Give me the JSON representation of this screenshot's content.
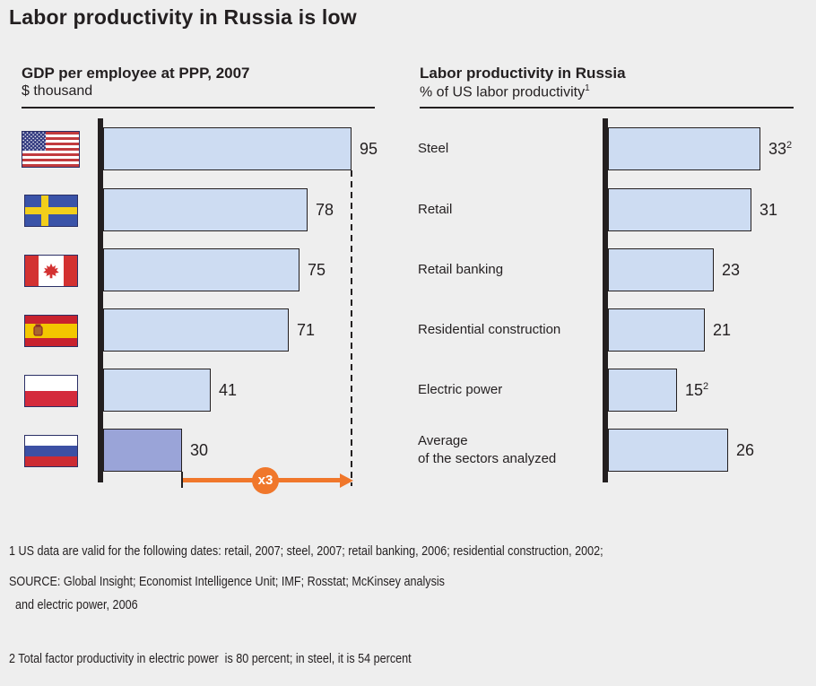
{
  "title": "Labor productivity in Russia is low",
  "left_chart": {
    "title": "GDP per employee at PPP, 2007",
    "subtitle": "$ thousand",
    "rows": [
      {
        "country": "United States",
        "value_label": "95"
      },
      {
        "country": "Sweden",
        "value_label": "78"
      },
      {
        "country": "Canada",
        "value_label": "75"
      },
      {
        "country": "Spain",
        "value_label": "71"
      },
      {
        "country": "Poland",
        "value_label": "41"
      },
      {
        "country": "Russia",
        "value_label": "30"
      }
    ],
    "multiplier_label": "x3"
  },
  "right_chart": {
    "title": "Labor productivity in Russia",
    "subtitle": "% of US labor productivity",
    "subtitle_superscript": "1",
    "rows": [
      {
        "label": "Steel",
        "value_label": "33",
        "superscript": "2"
      },
      {
        "label": "Retail",
        "value_label": "31",
        "superscript": ""
      },
      {
        "label": "Retail banking",
        "value_label": "23",
        "superscript": ""
      },
      {
        "label": "Residential construction",
        "value_label": "21",
        "superscript": ""
      },
      {
        "label": "Electric power",
        "value_label": "15",
        "superscript": "2"
      },
      {
        "label": "Average\n of the sectors analyzed",
        "value_label": "26",
        "superscript": ""
      }
    ]
  },
  "footnotes": [
    "1 US data are valid for the following dates: retail, 2007; steel, 2007; retail banking, 2006; residential construction, 2002;",
    "  and electric power, 2006",
    "2 Total factor productivity in electric power  is 80 percent; in steel, it is 54 percent"
  ],
  "source": "SOURCE: Global Insight; Economist Intelligence Unit; IMF; Rosstat; McKinsey analysis",
  "colors": {
    "background": "#EEEEEE",
    "bar_fill": "#CDDCF2",
    "bar_highlight": "#9AA4D8",
    "bar_border": "#231F20",
    "axis": "#231F20",
    "accent_orange": "#F0772B",
    "text": "#231F20"
  },
  "chart_data": [
    {
      "type": "bar",
      "orientation": "horizontal",
      "title": "GDP per employee at PPP, 2007",
      "unit": "$ thousand",
      "categories": [
        "United States",
        "Sweden",
        "Canada",
        "Spain",
        "Poland",
        "Russia"
      ],
      "values": [
        95,
        78,
        75,
        71,
        41,
        30
      ],
      "xlim": [
        0,
        95
      ],
      "highlight_category": "Russia",
      "annotations": [
        {
          "type": "arrow",
          "text": "x3",
          "note": "gap between Russia (30) and US (95)"
        }
      ],
      "legend": false,
      "grid": false
    },
    {
      "type": "bar",
      "orientation": "horizontal",
      "title": "Labor productivity in Russia",
      "unit": "% of US labor productivity",
      "categories": [
        "Steel",
        "Retail",
        "Retail banking",
        "Residential construction",
        "Electric power",
        "Average of the sectors analyzed"
      ],
      "values": [
        33,
        31,
        23,
        21,
        15,
        26
      ],
      "xlim": [
        0,
        35
      ],
      "legend": false,
      "grid": false
    }
  ]
}
